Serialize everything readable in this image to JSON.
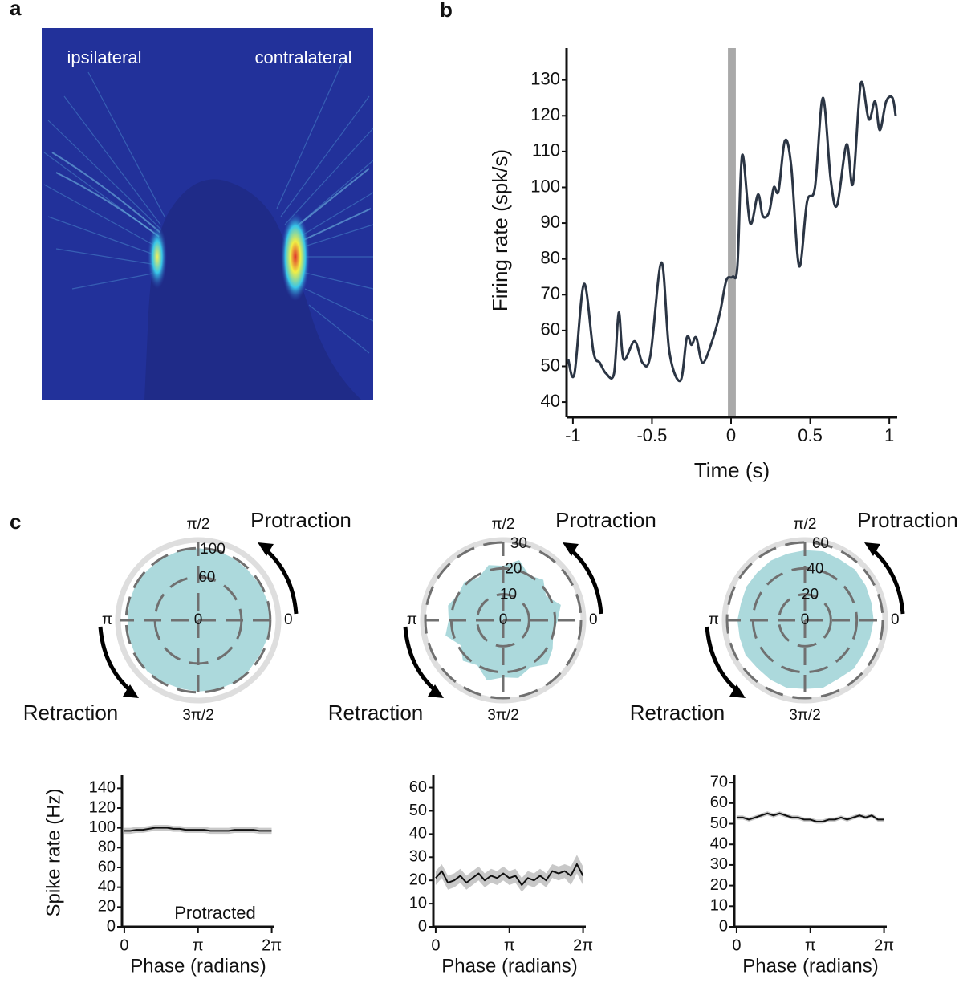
{
  "panel_labels": [
    "a",
    "b",
    "c"
  ],
  "image": {
    "labels": [
      "ipsilateral",
      "contralateral"
    ]
  },
  "annotations": [
    "Protraction",
    "Retraction"
  ],
  "chart_data": [
    {
      "type": "line",
      "xlabel": "Time (s)",
      "ylabel": "Firing rate (spk/s)",
      "color": "#2b3544",
      "x": [
        -1.03,
        -0.99,
        -0.93,
        -0.87,
        -0.83,
        -0.79,
        -0.74,
        -0.71,
        -0.68,
        -0.61,
        -0.56,
        -0.51,
        -0.44,
        -0.39,
        -0.32,
        -0.28,
        -0.25,
        -0.22,
        -0.18,
        -0.12,
        -0.07,
        -0.03,
        0.01,
        0.04,
        0.07,
        0.12,
        0.17,
        0.2,
        0.24,
        0.27,
        0.3,
        0.34,
        0.38,
        0.43,
        0.48,
        0.53,
        0.58,
        0.63,
        0.67,
        0.73,
        0.77,
        0.82,
        0.87,
        0.91,
        0.94,
        0.98,
        1.02,
        1.04
      ],
      "values": [
        52,
        48,
        73,
        54,
        51,
        48,
        48,
        65,
        52,
        57,
        51,
        53,
        79,
        54,
        46,
        58,
        56,
        58,
        51,
        57,
        65,
        74,
        75,
        78,
        109,
        90,
        98,
        92,
        93,
        100,
        99,
        113,
        106,
        78,
        96,
        100,
        125,
        102,
        95,
        112,
        101,
        129,
        119,
        124,
        116,
        124,
        125,
        120
      ],
      "xlim": [
        -1.04,
        1.05
      ],
      "ylim": [
        38,
        138
      ],
      "xticks": [
        -1,
        -0.5,
        0,
        0.5,
        1
      ],
      "yticks": [
        40,
        50,
        60,
        70,
        80,
        90,
        100,
        110,
        120,
        130
      ],
      "shaded_span": [
        -0.02,
        0.03
      ],
      "shade_color": "#a9a9a9"
    },
    {
      "type": "polar",
      "color": "#acd9dc",
      "theta": [
        0,
        0.26,
        0.52,
        0.79,
        1.05,
        1.31,
        1.57,
        1.83,
        2.09,
        2.36,
        2.62,
        2.88,
        3.14,
        3.4,
        3.67,
        3.93,
        4.19,
        4.45,
        4.71,
        4.97,
        5.24,
        5.5,
        5.76,
        6.02
      ],
      "values": [
        99,
        100,
        99,
        98,
        99,
        100,
        100,
        100,
        99,
        99,
        100,
        99,
        98,
        99,
        100,
        100,
        99,
        98,
        99,
        100,
        100,
        99,
        98,
        99
      ],
      "rlim": [
        0,
        108
      ],
      "rticks": [
        0,
        60,
        100
      ],
      "thetaticks": [
        0,
        {
          "value": 1.5708,
          "label": "π/2"
        },
        {
          "value": 3.1416,
          "label": "π"
        },
        {
          "value": 4.7124,
          "label": "3π/2"
        }
      ]
    },
    {
      "type": "polar",
      "color": "#acd9dc",
      "theta": [
        0,
        0.26,
        0.52,
        0.79,
        1.05,
        1.31,
        1.57,
        1.83,
        2.09,
        2.36,
        2.62,
        2.88,
        3.14,
        3.4,
        3.67,
        3.93,
        4.19,
        4.45,
        4.71,
        4.97,
        5.24,
        5.5,
        5.76,
        6.02
      ],
      "values": [
        21,
        23,
        19,
        22,
        20,
        24,
        21,
        22,
        19,
        21,
        20,
        22,
        21,
        23,
        19,
        22,
        20,
        24,
        22,
        23,
        21,
        24,
        22,
        20
      ],
      "rlim": [
        0,
        30
      ],
      "rticks": [
        0,
        10,
        20,
        30
      ],
      "thetaticks": [
        0,
        {
          "value": 1.5708,
          "label": "π/2"
        },
        {
          "value": 3.1416,
          "label": "π"
        },
        {
          "value": 4.7124,
          "label": "3π/2"
        }
      ]
    },
    {
      "type": "polar",
      "color": "#acd9dc",
      "theta": [
        0,
        0.26,
        0.52,
        0.79,
        1.05,
        1.31,
        1.57,
        1.83,
        2.09,
        2.36,
        2.62,
        2.88,
        3.14,
        3.4,
        3.67,
        3.93,
        4.19,
        4.45,
        4.71,
        4.97,
        5.24,
        5.5,
        5.76,
        6.02
      ],
      "values": [
        53,
        53,
        54,
        55,
        54,
        55,
        54,
        53,
        53,
        52,
        52,
        51,
        52,
        52,
        53,
        52,
        53,
        54,
        53,
        54,
        52,
        53,
        52,
        52
      ],
      "rlim": [
        0,
        60
      ],
      "rticks": [
        0,
        20,
        40,
        60
      ],
      "thetaticks": [
        0,
        {
          "value": 1.5708,
          "label": "π/2"
        },
        {
          "value": 3.1416,
          "label": "π"
        },
        {
          "value": 4.7124,
          "label": "3π/2"
        }
      ]
    },
    {
      "type": "line",
      "xlabel": "Phase (radians)",
      "ylabel": "Spike rate (Hz)",
      "annotation": "Protracted",
      "color": "#111111",
      "band_color": "#c8c8c8",
      "x": [
        0,
        0.26,
        0.52,
        0.79,
        1.05,
        1.31,
        1.57,
        1.83,
        2.09,
        2.36,
        2.62,
        2.88,
        3.14,
        3.4,
        3.67,
        3.93,
        4.19,
        4.45,
        4.71,
        4.97,
        5.24,
        5.5,
        5.76,
        6.02,
        6.28
      ],
      "values": [
        97,
        97,
        98,
        98,
        99,
        100,
        100,
        100,
        99,
        99,
        98,
        98,
        98,
        98,
        97,
        97,
        97,
        97,
        98,
        98,
        98,
        98,
        97,
        97,
        97
      ],
      "error": [
        3,
        3,
        3,
        3,
        3,
        3,
        3,
        3,
        3,
        3,
        3,
        3,
        3,
        3,
        3,
        3,
        3,
        3,
        3,
        3,
        3,
        3,
        3,
        3,
        3
      ],
      "xlim": [
        -0.1,
        6.4
      ],
      "ylim": [
        0,
        150
      ],
      "xticks": [
        0,
        {
          "value": 3.1416,
          "label": "π"
        },
        {
          "value": 6.2832,
          "label": "2π"
        }
      ],
      "yticks": [
        0,
        20,
        40,
        60,
        80,
        100,
        120,
        140
      ]
    },
    {
      "type": "line",
      "xlabel": "Phase (radians)",
      "color": "#111111",
      "band_color": "#c8c8c8",
      "x": [
        0,
        0.26,
        0.52,
        0.79,
        1.05,
        1.31,
        1.57,
        1.83,
        2.09,
        2.36,
        2.62,
        2.88,
        3.14,
        3.4,
        3.67,
        3.93,
        4.19,
        4.45,
        4.71,
        4.97,
        5.24,
        5.5,
        5.76,
        6.02,
        6.28
      ],
      "values": [
        21,
        24,
        19,
        20,
        22,
        19,
        21,
        23,
        20,
        22,
        21,
        23,
        21,
        22,
        18,
        21,
        20,
        22,
        20,
        24,
        23,
        24,
        22,
        27,
        22
      ],
      "error": [
        3,
        3,
        3,
        3,
        3,
        3,
        3,
        3,
        3,
        3,
        3,
        3,
        3,
        3,
        3,
        3,
        3,
        3,
        3,
        3,
        3,
        3,
        4,
        4,
        4
      ],
      "xlim": [
        -0.1,
        6.4
      ],
      "ylim": [
        0,
        64
      ],
      "xticks": [
        0,
        {
          "value": 3.1416,
          "label": "π"
        },
        {
          "value": 6.2832,
          "label": "2π"
        }
      ],
      "yticks": [
        0,
        10,
        20,
        30,
        40,
        50,
        60
      ]
    },
    {
      "type": "line",
      "xlabel": "Phase (radians)",
      "color": "#111111",
      "band_color": "#c8c8c8",
      "x": [
        0,
        0.26,
        0.52,
        0.79,
        1.05,
        1.31,
        1.57,
        1.83,
        2.09,
        2.36,
        2.62,
        2.88,
        3.14,
        3.4,
        3.67,
        3.93,
        4.19,
        4.45,
        4.71,
        4.97,
        5.24,
        5.5,
        5.76,
        6.02,
        6.28
      ],
      "values": [
        53,
        53,
        52,
        53,
        54,
        55,
        54,
        55,
        54,
        53,
        53,
        52,
        52,
        51,
        51,
        52,
        52,
        53,
        52,
        53,
        54,
        53,
        54,
        52,
        52
      ],
      "error": [
        1,
        1,
        1,
        1,
        1,
        1,
        1,
        1,
        1,
        1,
        1,
        1,
        1,
        1,
        1,
        1,
        1,
        1,
        1,
        1,
        1,
        1,
        1,
        1,
        1
      ],
      "xlim": [
        -0.1,
        6.4
      ],
      "ylim": [
        0,
        72
      ],
      "xticks": [
        0,
        {
          "value": 3.1416,
          "label": "π"
        },
        {
          "value": 6.2832,
          "label": "2π"
        }
      ],
      "yticks": [
        0,
        10,
        20,
        30,
        40,
        50,
        60,
        70
      ]
    }
  ]
}
